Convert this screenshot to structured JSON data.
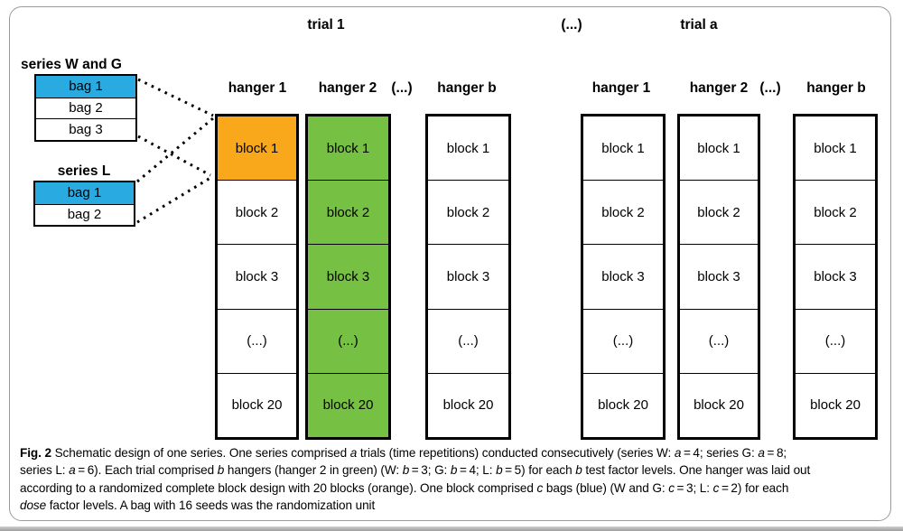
{
  "colors": {
    "bag_blue": "#29ABE2",
    "block_orange": "#F9A81C",
    "hanger_green": "#76C043",
    "block_white": "#FFFFFF"
  },
  "trial_headers": [
    {
      "label": "trial 1"
    },
    {
      "label": "(...)"
    },
    {
      "label": "trial a"
    }
  ],
  "hanger_headers": [
    {
      "label": "hanger 1"
    },
    {
      "label": "hanger 2"
    },
    {
      "label": "(...)"
    },
    {
      "label": "hanger b"
    },
    {
      "label": "hanger 1"
    },
    {
      "label": "hanger 2"
    },
    {
      "label": "(...)"
    },
    {
      "label": "hanger b"
    }
  ],
  "legend_boxes": [
    {
      "title": "series W and G",
      "bags": [
        "bag 1",
        "bag 2",
        "bag 3"
      ],
      "highlighted": [
        true,
        false,
        false
      ]
    },
    {
      "title": "series L",
      "bags": [
        "bag 1",
        "bag 2"
      ],
      "highlighted": [
        true,
        false
      ]
    }
  ],
  "columns": [
    {
      "trial": "trial 1",
      "hanger": "hanger 1",
      "blocks": [
        "block 1",
        "block 2",
        "block 3",
        "(...)",
        "block 20"
      ],
      "fills": [
        "orange",
        "white",
        "white",
        "white",
        "white"
      ]
    },
    {
      "trial": "trial 1",
      "hanger": "hanger 2",
      "blocks": [
        "block 1",
        "block 2",
        "block 3",
        "(...)",
        "block 20"
      ],
      "fills": [
        "green",
        "green",
        "green",
        "green",
        "green"
      ]
    },
    {
      "trial": "trial 1",
      "hanger": "hanger b",
      "blocks": [
        "block 1",
        "block 2",
        "block 3",
        "(...)",
        "block 20"
      ],
      "fills": [
        "white",
        "white",
        "white",
        "white",
        "white"
      ]
    },
    {
      "trial": "trial a",
      "hanger": "hanger 1",
      "blocks": [
        "block 1",
        "block 2",
        "block 3",
        "(...)",
        "block 20"
      ],
      "fills": [
        "white",
        "white",
        "white",
        "white",
        "white"
      ]
    },
    {
      "trial": "trial a",
      "hanger": "hanger 2",
      "blocks": [
        "block 1",
        "block 2",
        "block 3",
        "(...)",
        "block 20"
      ],
      "fills": [
        "white",
        "white",
        "white",
        "white",
        "white"
      ]
    },
    {
      "trial": "trial a",
      "hanger": "hanger b",
      "blocks": [
        "block 1",
        "block 2",
        "block 3",
        "(...)",
        "block 20"
      ],
      "fills": [
        "white",
        "white",
        "white",
        "white",
        "white"
      ]
    }
  ],
  "caption": {
    "lines": [
      [
        {
          "t": "Fig. 2",
          "b": true
        },
        {
          "t": "  Schematic design of one series. One series comprised "
        },
        {
          "t": "a",
          "i": true
        },
        {
          "t": " trials (time repetitions) conducted consecutively (series W: "
        },
        {
          "t": "a",
          "i": true
        },
        {
          "t": " = 4; series G: "
        },
        {
          "t": "a",
          "i": true
        },
        {
          "t": " = 8;"
        }
      ],
      [
        {
          "t": "series L: "
        },
        {
          "t": "a",
          "i": true
        },
        {
          "t": " = 6). Each trial comprised "
        },
        {
          "t": "b",
          "i": true
        },
        {
          "t": " hangers (hanger 2 in green) (W: "
        },
        {
          "t": "b",
          "i": true
        },
        {
          "t": " = 3; G: "
        },
        {
          "t": "b",
          "i": true
        },
        {
          "t": " = 4; L: "
        },
        {
          "t": "b",
          "i": true
        },
        {
          "t": " = 5) for each "
        },
        {
          "t": "b",
          "i": true
        },
        {
          "t": " test factor levels. One hanger was laid out"
        }
      ],
      [
        {
          "t": "according to a randomized complete block design with 20 blocks (orange). One block comprised "
        },
        {
          "t": "c",
          "i": true
        },
        {
          "t": " bags (blue) (W and G: "
        },
        {
          "t": "c",
          "i": true
        },
        {
          "t": " = 3; L: "
        },
        {
          "t": "c",
          "i": true
        },
        {
          "t": " = 2) for each"
        }
      ],
      [
        {
          "t": "dose",
          "i": true
        },
        {
          "t": " factor levels. A bag with 16 seeds was the randomization unit"
        }
      ]
    ]
  }
}
